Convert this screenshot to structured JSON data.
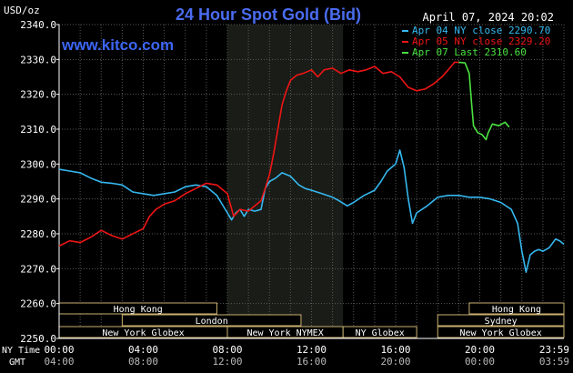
{
  "chart_data": {
    "type": "line",
    "title": "24 Hour Spot Gold (Bid)",
    "unit_label": "USD/oz",
    "site_url": "www.kitco.com",
    "timestamp": "April 07, 2024 20:02",
    "ylim": [
      2250,
      2340
    ],
    "y_ticks": [
      "2340.0",
      "2330.0",
      "2320.0",
      "2310.0",
      "2300.0",
      "2290.0",
      "2280.0",
      "2270.0",
      "2260.0",
      "2250.0"
    ],
    "x_row_label_ny": "NY Time",
    "x_row_label_gmt": "GMT",
    "x_ticks_ny": [
      "00:00",
      "04:00",
      "08:00",
      "12:00",
      "16:00",
      "20:00",
      "23:59"
    ],
    "x_ticks_gmt": [
      "04:00",
      "08:00",
      "12:00",
      "16:00",
      "20:00",
      "00:00",
      "03:59"
    ],
    "grid": true,
    "legend_position": "top-right",
    "series": [
      {
        "name": "Apr 04 NY close 2290.70",
        "color": "#35b8ef",
        "points": [
          [
            0,
            2298.5
          ],
          [
            0.5,
            2298
          ],
          [
            1,
            2297.5
          ],
          [
            1.5,
            2296
          ],
          [
            2,
            2294.8
          ],
          [
            2.5,
            2294.5
          ],
          [
            3,
            2294
          ],
          [
            3.5,
            2292
          ],
          [
            4,
            2291.5
          ],
          [
            4.5,
            2291
          ],
          [
            5,
            2291.5
          ],
          [
            5.5,
            2292
          ],
          [
            6,
            2293.5
          ],
          [
            6.5,
            2294
          ],
          [
            7,
            2293.5
          ],
          [
            7.5,
            2291
          ],
          [
            8,
            2286
          ],
          [
            8.2,
            2284
          ],
          [
            8.4,
            2286
          ],
          [
            8.6,
            2287
          ],
          [
            8.8,
            2285
          ],
          [
            9,
            2287
          ],
          [
            9.3,
            2286.5
          ],
          [
            9.6,
            2287
          ],
          [
            9.8,
            2293
          ],
          [
            10,
            2295
          ],
          [
            10.3,
            2296
          ],
          [
            10.6,
            2297.5
          ],
          [
            11,
            2296.5
          ],
          [
            11.4,
            2294
          ],
          [
            11.7,
            2293
          ],
          [
            12,
            2292.5
          ],
          [
            12.5,
            2291.5
          ],
          [
            13,
            2290.5
          ],
          [
            13.3,
            2289.5
          ],
          [
            13.7,
            2288
          ],
          [
            14,
            2289
          ],
          [
            14.5,
            2291
          ],
          [
            15,
            2292.5
          ],
          [
            15.3,
            2295
          ],
          [
            15.6,
            2298
          ],
          [
            16,
            2300
          ],
          [
            16.2,
            2304
          ],
          [
            16.4,
            2299
          ],
          [
            16.6,
            2290
          ],
          [
            16.8,
            2283
          ],
          [
            17,
            2286
          ],
          [
            17.5,
            2288
          ],
          [
            18,
            2290.5
          ],
          [
            18.5,
            2291
          ],
          [
            19,
            2291
          ],
          [
            19.5,
            2290.5
          ],
          [
            20,
            2290.5
          ],
          [
            20.5,
            2290
          ],
          [
            21,
            2289
          ],
          [
            21.5,
            2287
          ],
          [
            21.8,
            2283
          ],
          [
            22,
            2275
          ],
          [
            22.2,
            2269
          ],
          [
            22.4,
            2274
          ],
          [
            22.6,
            2275
          ],
          [
            22.8,
            2275.5
          ],
          [
            23,
            2275
          ],
          [
            23.3,
            2276
          ],
          [
            23.6,
            2278.5
          ],
          [
            23.8,
            2278
          ],
          [
            24,
            2277
          ]
        ]
      },
      {
        "name": "Apr 05 NY close 2329.20",
        "color": "#ee1515",
        "points": [
          [
            0,
            2276.5
          ],
          [
            0.5,
            2278
          ],
          [
            1,
            2277.5
          ],
          [
            1.5,
            2279
          ],
          [
            2,
            2281
          ],
          [
            2.5,
            2279.5
          ],
          [
            3,
            2278.5
          ],
          [
            3.5,
            2280
          ],
          [
            4,
            2281.5
          ],
          [
            4.3,
            2285
          ],
          [
            4.6,
            2287
          ],
          [
            5,
            2288.5
          ],
          [
            5.5,
            2289.5
          ],
          [
            6,
            2291.5
          ],
          [
            6.5,
            2293
          ],
          [
            7,
            2294.5
          ],
          [
            7.5,
            2294
          ],
          [
            8,
            2291.5
          ],
          [
            8.3,
            2285
          ],
          [
            8.6,
            2287
          ],
          [
            9,
            2286.5
          ],
          [
            9.3,
            2288
          ],
          [
            9.6,
            2289.5
          ],
          [
            9.8,
            2293
          ],
          [
            10,
            2297
          ],
          [
            10.2,
            2303
          ],
          [
            10.4,
            2310
          ],
          [
            10.6,
            2317
          ],
          [
            10.8,
            2321
          ],
          [
            11,
            2324
          ],
          [
            11.3,
            2325.5
          ],
          [
            11.6,
            2326
          ],
          [
            12,
            2327
          ],
          [
            12.3,
            2325
          ],
          [
            12.6,
            2327
          ],
          [
            13,
            2327.5
          ],
          [
            13.4,
            2326
          ],
          [
            13.8,
            2327
          ],
          [
            14.2,
            2326.5
          ],
          [
            14.6,
            2327
          ],
          [
            15,
            2328
          ],
          [
            15.4,
            2326
          ],
          [
            15.8,
            2326.5
          ],
          [
            16.2,
            2325
          ],
          [
            16.6,
            2322
          ],
          [
            17,
            2321
          ],
          [
            17.4,
            2321.5
          ],
          [
            17.8,
            2323
          ],
          [
            18.2,
            2325
          ],
          [
            18.5,
            2327
          ],
          [
            18.8,
            2329.2
          ],
          [
            19,
            2329.2
          ]
        ]
      },
      {
        "name": "Apr 07 Last 2310.60",
        "color": "#4be341",
        "points": [
          [
            19,
            2329.2
          ],
          [
            19.3,
            2329
          ],
          [
            19.5,
            2326
          ],
          [
            19.6,
            2318
          ],
          [
            19.7,
            2311
          ],
          [
            19.9,
            2309
          ],
          [
            20.1,
            2308.5
          ],
          [
            20.3,
            2307
          ],
          [
            20.4,
            2309
          ],
          [
            20.6,
            2311.5
          ],
          [
            20.9,
            2311
          ],
          [
            21.2,
            2312
          ],
          [
            21.4,
            2310.6
          ]
        ]
      }
    ],
    "sessions_row1": [
      {
        "label": "Hong Kong",
        "from": 0,
        "to": 7.5
      },
      {
        "label": "Hong Kong",
        "from": 19.5,
        "to": 24
      }
    ],
    "sessions_row2": [
      {
        "label": "London",
        "from": 3,
        "to": 11.5
      },
      {
        "label": "Sydney",
        "from": 18,
        "to": 24
      }
    ],
    "sessions_row3": [
      {
        "label": "New York Globex",
        "from": 0,
        "to": 8
      },
      {
        "label": "New York NYMEX",
        "from": 8,
        "to": 13.5
      },
      {
        "label": "NY Globex",
        "from": 13.5,
        "to": 17
      },
      {
        "label": "New York Globex",
        "from": 18,
        "to": 24
      }
    ],
    "highlight_band": {
      "from": 8,
      "to": 13.5
    }
  }
}
